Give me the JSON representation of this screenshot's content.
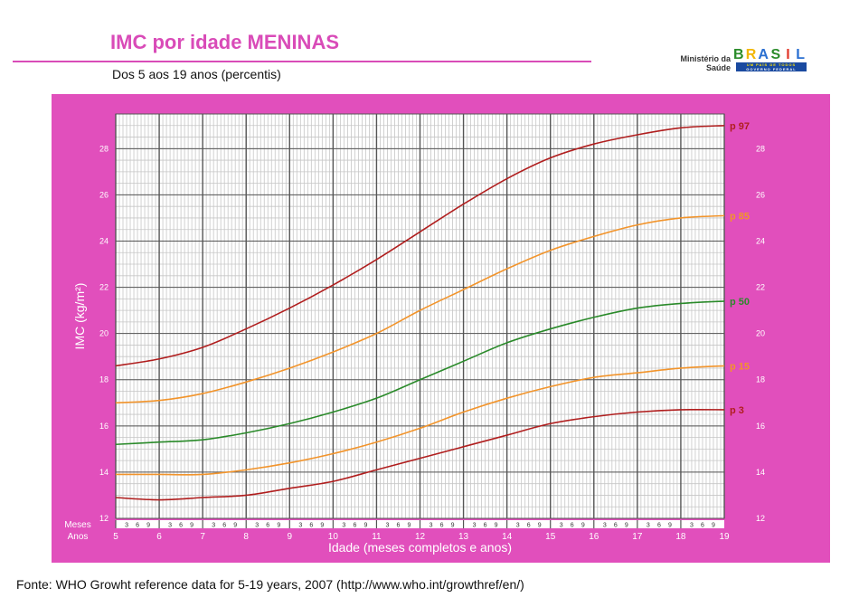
{
  "header": {
    "title": "IMC por idade MENINAS",
    "subtitle": "Dos 5 aos 19 anos (percentis)"
  },
  "logo": {
    "ministry": "Ministério da Saúde",
    "brand_letters": [
      "B",
      "R",
      "A",
      "S",
      "I",
      "L"
    ],
    "brand_colors": [
      "#2a8c2a",
      "#f2b705",
      "#2a6fd1",
      "#2a8c2a",
      "#e23b2e",
      "#2a6fd1"
    ],
    "tagline": "UM PAÍS DE TODOS",
    "government": "GOVERNO FEDERAL"
  },
  "source": "Fonte: WHO Growht reference data for 5-19 years, 2007 (http://www.who.int/growthref/en/)",
  "colors": {
    "panel": "#e14fbc",
    "grid_fine": "#c6c6c6",
    "grid_major": "#555555",
    "p97": "#b01e1e",
    "p85": "#f2942b",
    "p50": "#2a8a2a",
    "p15": "#f2942b",
    "p3": "#b01e1e"
  },
  "chart_data": {
    "type": "line",
    "title": "IMC por idade MENINAS",
    "xlabel": "Idade (meses completos e anos)",
    "ylabel": "IMC (kg/m²)",
    "x_label_rows": [
      "Meses",
      "Anos"
    ],
    "month_ticks": [
      "3",
      "6",
      "9"
    ],
    "xlim": [
      5,
      19
    ],
    "ylim": [
      12,
      29.5
    ],
    "yticks": [
      12,
      14,
      16,
      18,
      20,
      22,
      24,
      26,
      28
    ],
    "xticks": [
      5,
      6,
      7,
      8,
      9,
      10,
      11,
      12,
      13,
      14,
      15,
      16,
      17,
      18,
      19
    ],
    "grid": true,
    "series": [
      {
        "name": "p 97",
        "color": "#b01e1e",
        "x": [
          5,
          6,
          7,
          8,
          9,
          10,
          11,
          12,
          13,
          14,
          15,
          16,
          17,
          18,
          19
        ],
        "y": [
          18.6,
          18.9,
          19.4,
          20.2,
          21.1,
          22.1,
          23.2,
          24.4,
          25.6,
          26.7,
          27.6,
          28.2,
          28.6,
          28.9,
          29.0
        ]
      },
      {
        "name": "p 85",
        "color": "#f2942b",
        "x": [
          5,
          6,
          7,
          8,
          9,
          10,
          11,
          12,
          13,
          14,
          15,
          16,
          17,
          18,
          19
        ],
        "y": [
          17.0,
          17.1,
          17.4,
          17.9,
          18.5,
          19.2,
          20.0,
          21.0,
          21.9,
          22.8,
          23.6,
          24.2,
          24.7,
          25.0,
          25.1
        ]
      },
      {
        "name": "p 50",
        "color": "#2a8a2a",
        "x": [
          5,
          6,
          7,
          8,
          9,
          10,
          11,
          12,
          13,
          14,
          15,
          16,
          17,
          18,
          19
        ],
        "y": [
          15.2,
          15.3,
          15.4,
          15.7,
          16.1,
          16.6,
          17.2,
          18.0,
          18.8,
          19.6,
          20.2,
          20.7,
          21.1,
          21.3,
          21.4
        ]
      },
      {
        "name": "p 15",
        "color": "#f2942b",
        "x": [
          5,
          6,
          7,
          8,
          9,
          10,
          11,
          12,
          13,
          14,
          15,
          16,
          17,
          18,
          19
        ],
        "y": [
          13.9,
          13.9,
          13.9,
          14.1,
          14.4,
          14.8,
          15.3,
          15.9,
          16.6,
          17.2,
          17.7,
          18.1,
          18.3,
          18.5,
          18.6
        ]
      },
      {
        "name": "p 3",
        "color": "#b01e1e",
        "x": [
          5,
          6,
          7,
          8,
          9,
          10,
          11,
          12,
          13,
          14,
          15,
          16,
          17,
          18,
          19
        ],
        "y": [
          12.9,
          12.8,
          12.9,
          13.0,
          13.3,
          13.6,
          14.1,
          14.6,
          15.1,
          15.6,
          16.1,
          16.4,
          16.6,
          16.7,
          16.7
        ]
      }
    ]
  }
}
